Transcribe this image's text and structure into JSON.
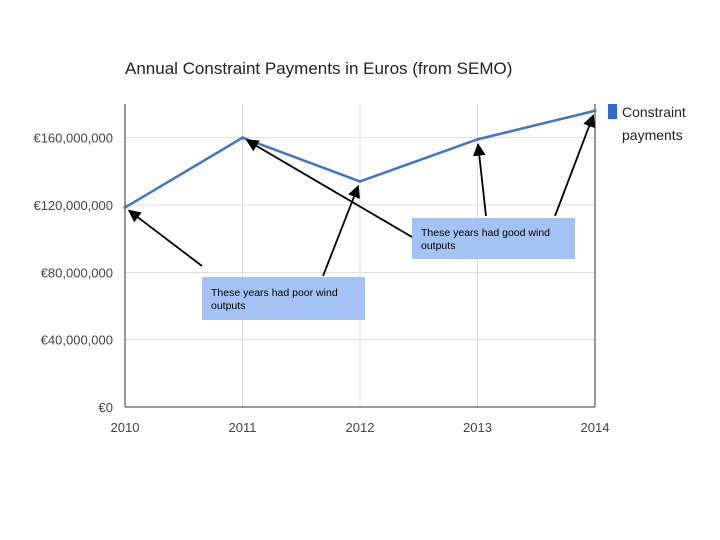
{
  "chart_data": {
    "type": "line",
    "title": "Annual Constraint Payments in Euros (from SEMO)",
    "xlabel": "",
    "ylabel": "",
    "x": [
      "2010",
      "2011",
      "2012",
      "2013",
      "2014"
    ],
    "series": [
      {
        "name": "Constraint payments",
        "values": [
          118500000,
          160000000,
          134000000,
          159000000,
          176000000
        ],
        "color": "#4472c4"
      }
    ],
    "ylim": [
      0,
      180000000
    ],
    "yticks": [
      0,
      40000000,
      80000000,
      120000000,
      160000000
    ],
    "ytick_labels": [
      "€0",
      "€40,000,000",
      "€80,000,000",
      "€120,000,000",
      "€160,000,000"
    ],
    "grid": true,
    "legend": {
      "position": "right",
      "line1": "Constraint",
      "line2": "payments",
      "color": "#3366cc"
    },
    "annotations": [
      {
        "id": "poor",
        "line1": "These years had poor wind",
        "line2": "outputs",
        "color": "#a4c2f4",
        "targets": [
          "2010",
          "2012"
        ]
      },
      {
        "id": "good",
        "line1": "These years had good wind",
        "line2": "outputs",
        "color": "#a4c2f4",
        "targets": [
          "2011",
          "2013",
          "2014"
        ]
      }
    ]
  }
}
